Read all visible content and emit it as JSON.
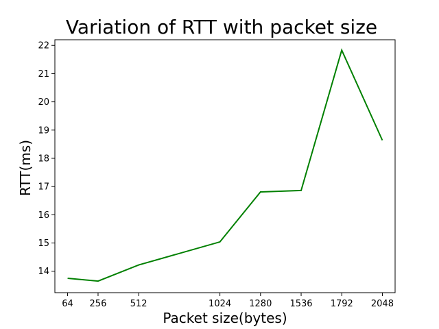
{
  "chart_data": {
    "type": "line",
    "title": "Variation of RTT with packet size",
    "xlabel": "Packet size(bytes)",
    "ylabel": "RTT(ms)",
    "x": [
      64,
      256,
      512,
      1024,
      1280,
      1536,
      1792,
      2048
    ],
    "x_tick_labels": [
      "64",
      "256",
      "512",
      "1024",
      "1280",
      "1536",
      "1792",
      "2048"
    ],
    "y_ticks": [
      14,
      15,
      16,
      17,
      18,
      19,
      20,
      21,
      22
    ],
    "y_tick_labels": [
      "14",
      "15",
      "16",
      "17",
      "18",
      "19",
      "20",
      "21",
      "22"
    ],
    "series": [
      {
        "values": [
          13.75,
          13.65,
          14.22,
          15.04,
          16.81,
          16.86,
          21.83,
          18.64
        ],
        "color": "#008000"
      }
    ],
    "xlim": [
      -16.2,
      2128.2
    ],
    "ylim": [
      13.24,
      22.2
    ],
    "grid": false
  }
}
